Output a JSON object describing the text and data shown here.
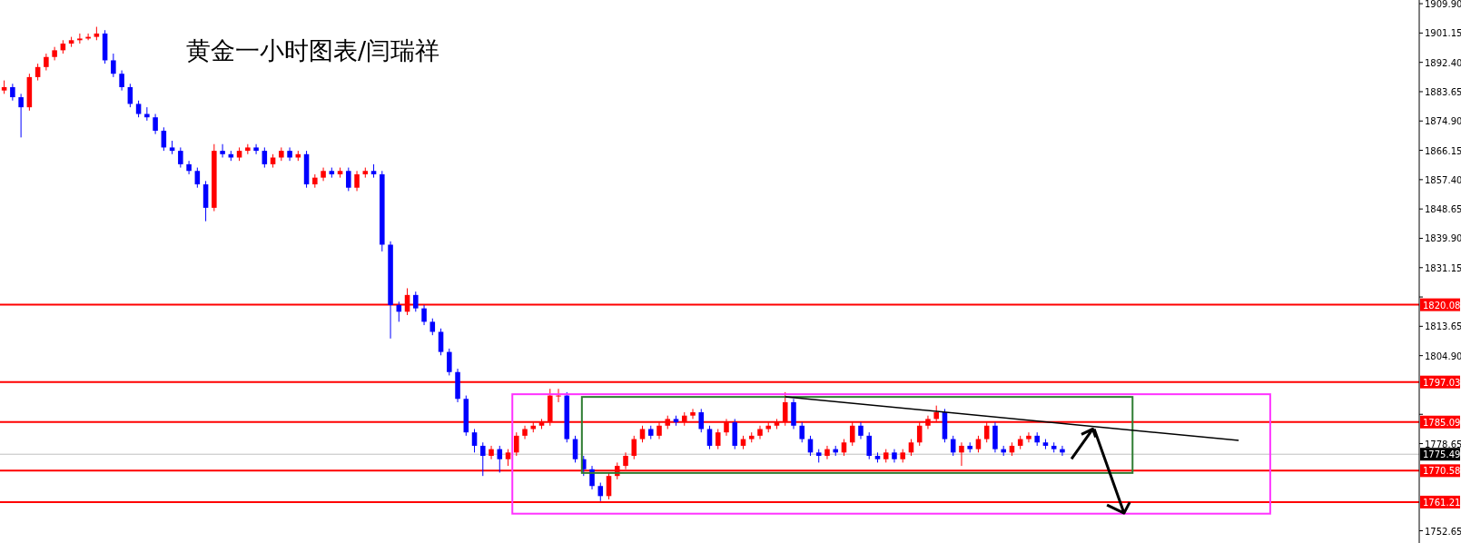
{
  "chart_data": {
    "type": "candlestick",
    "title": "黄金一小时图表/闫瑞祥",
    "categories": [
      null,
      null,
      null,
      null,
      null,
      null,
      null,
      null,
      null,
      null,
      null,
      null,
      null,
      null,
      null,
      null,
      null,
      null,
      null,
      null,
      null,
      null,
      null,
      null,
      null,
      null,
      null,
      null,
      null,
      null,
      null,
      null,
      null,
      null,
      null,
      null,
      null,
      null,
      null,
      null,
      null,
      null,
      null,
      null,
      null,
      null,
      null,
      null,
      null,
      null,
      null,
      null,
      null,
      null,
      null,
      null,
      null,
      null,
      null,
      null,
      null,
      null,
      null,
      null,
      null,
      null,
      null,
      null,
      null,
      null,
      null,
      null,
      null,
      null,
      null,
      null,
      null,
      null,
      null,
      null,
      null,
      null,
      null,
      null,
      null,
      null,
      null,
      null,
      null,
      null,
      null,
      null,
      null,
      null,
      null,
      null,
      null,
      null,
      null,
      null,
      null,
      null,
      null,
      null,
      null,
      null,
      null,
      null,
      null,
      null,
      null,
      null,
      null,
      null,
      null,
      null,
      null,
      null,
      null,
      null,
      null,
      null,
      null,
      null,
      null,
      null,
      null,
      null,
      null,
      null,
      null,
      null,
      null,
      null,
      null,
      null,
      null,
      null,
      null,
      null,
      null,
      null,
      null,
      null,
      null,
      null,
      null,
      null,
      null,
      null,
      null,
      null,
      null,
      null,
      null,
      null,
      null,
      null,
      null,
      null,
      null,
      null,
      null,
      null,
      null,
      null,
      null,
      null,
      null
    ],
    "ohlc": [
      [
        1884,
        1887,
        1883,
        1885
      ],
      [
        1885,
        1886,
        1881,
        1882
      ],
      [
        1882,
        1883,
        1870,
        1879
      ],
      [
        1879,
        1889,
        1878,
        1888
      ],
      [
        1888,
        1892,
        1887,
        1891
      ],
      [
        1891,
        1895,
        1890,
        1894
      ],
      [
        1894,
        1897,
        1893,
        1896
      ],
      [
        1896,
        1899,
        1895,
        1898
      ],
      [
        1898,
        1900,
        1897,
        1899
      ],
      [
        1899,
        1901,
        1898,
        1899.5
      ],
      [
        1899.5,
        1901,
        1899,
        1900
      ],
      [
        1900,
        1903,
        1899,
        1901
      ],
      [
        1901,
        1902,
        1892,
        1893
      ],
      [
        1893,
        1895,
        1888,
        1889
      ],
      [
        1889,
        1890,
        1884,
        1885
      ],
      [
        1885,
        1886,
        1879,
        1880
      ],
      [
        1880,
        1881,
        1876,
        1877
      ],
      [
        1877,
        1879,
        1875,
        1876
      ],
      [
        1876,
        1877,
        1871,
        1872
      ],
      [
        1872,
        1873,
        1866,
        1867
      ],
      [
        1867,
        1869,
        1865,
        1866
      ],
      [
        1866,
        1867,
        1861,
        1862
      ],
      [
        1862,
        1863,
        1859,
        1860
      ],
      [
        1860,
        1861,
        1855,
        1856
      ],
      [
        1856,
        1857,
        1845,
        1849
      ],
      [
        1849,
        1868,
        1848,
        1866
      ],
      [
        1866,
        1868,
        1864,
        1865
      ],
      [
        1865,
        1866,
        1863,
        1864
      ],
      [
        1864,
        1867,
        1863,
        1866
      ],
      [
        1866,
        1868,
        1865,
        1867
      ],
      [
        1867,
        1868,
        1865,
        1866
      ],
      [
        1866,
        1867,
        1861,
        1862
      ],
      [
        1862,
        1865,
        1861,
        1864
      ],
      [
        1864,
        1867,
        1863,
        1866
      ],
      [
        1866,
        1867,
        1863,
        1864
      ],
      [
        1864,
        1866,
        1863,
        1865
      ],
      [
        1865,
        1866,
        1855,
        1856
      ],
      [
        1856,
        1859,
        1855,
        1858
      ],
      [
        1858,
        1861,
        1857,
        1860
      ],
      [
        1860,
        1861,
        1858,
        1859
      ],
      [
        1859,
        1861,
        1858,
        1860
      ],
      [
        1860,
        1861,
        1854,
        1855
      ],
      [
        1855,
        1860,
        1854,
        1859
      ],
      [
        1859,
        1861,
        1858,
        1860
      ],
      [
        1860,
        1862,
        1858,
        1859
      ],
      [
        1859,
        1860,
        1836,
        1838
      ],
      [
        1838,
        1839,
        1810,
        1820
      ],
      [
        1820,
        1821,
        1815,
        1818
      ],
      [
        1818,
        1825,
        1817,
        1823
      ],
      [
        1823,
        1824,
        1818,
        1819
      ],
      [
        1819,
        1820,
        1814,
        1815
      ],
      [
        1815,
        1816,
        1811,
        1812
      ],
      [
        1812,
        1813,
        1805,
        1806
      ],
      [
        1806,
        1807,
        1799,
        1800
      ],
      [
        1800,
        1801,
        1791,
        1792
      ],
      [
        1792,
        1793,
        1781,
        1782
      ],
      [
        1782,
        1783,
        1776,
        1778
      ],
      [
        1778,
        1779,
        1769,
        1775
      ],
      [
        1775,
        1778,
        1774,
        1777
      ],
      [
        1777,
        1778,
        1770,
        1774
      ],
      [
        1774,
        1777,
        1772,
        1776
      ],
      [
        1776,
        1782,
        1775,
        1781
      ],
      [
        1781,
        1784,
        1780,
        1783
      ],
      [
        1783,
        1785,
        1782,
        1784
      ],
      [
        1784,
        1786,
        1783,
        1785
      ],
      [
        1785,
        1795,
        1784,
        1793
      ],
      [
        1793,
        1795,
        1791,
        1793
      ],
      [
        1793,
        1794,
        1779,
        1780
      ],
      [
        1780,
        1781,
        1773,
        1774
      ],
      [
        1774,
        1775,
        1769,
        1771
      ],
      [
        1771,
        1772,
        1765,
        1766
      ],
      [
        1766,
        1767,
        1761.5,
        1763
      ],
      [
        1763,
        1770,
        1762,
        1769
      ],
      [
        1769,
        1773,
        1768,
        1772
      ],
      [
        1772,
        1776,
        1771,
        1775
      ],
      [
        1775,
        1781,
        1774,
        1780
      ],
      [
        1780,
        1784,
        1779,
        1783
      ],
      [
        1783,
        1784,
        1780,
        1781
      ],
      [
        1781,
        1785,
        1780,
        1784
      ],
      [
        1784,
        1787,
        1783,
        1786
      ],
      [
        1786,
        1787,
        1784,
        1785
      ],
      [
        1785,
        1788,
        1784,
        1787
      ],
      [
        1787,
        1789,
        1786,
        1788
      ],
      [
        1788,
        1789,
        1782,
        1783
      ],
      [
        1783,
        1784,
        1777,
        1778
      ],
      [
        1778,
        1783,
        1777,
        1782
      ],
      [
        1782,
        1786,
        1781,
        1785
      ],
      [
        1785,
        1786,
        1777,
        1778
      ],
      [
        1778,
        1781,
        1777,
        1780
      ],
      [
        1780,
        1782,
        1779,
        1781
      ],
      [
        1781,
        1784,
        1780,
        1783
      ],
      [
        1783,
        1785,
        1782,
        1784
      ],
      [
        1784,
        1786,
        1783,
        1785
      ],
      [
        1785,
        1794,
        1784,
        1791
      ],
      [
        1791,
        1792,
        1783,
        1784
      ],
      [
        1784,
        1785,
        1779,
        1780
      ],
      [
        1780,
        1781,
        1775,
        1776
      ],
      [
        1776,
        1777,
        1773,
        1775
      ],
      [
        1775,
        1778,
        1774,
        1777
      ],
      [
        1777,
        1778,
        1775,
        1776
      ],
      [
        1776,
        1780,
        1775,
        1779
      ],
      [
        1779,
        1785,
        1778,
        1784
      ],
      [
        1784,
        1785,
        1780,
        1781
      ],
      [
        1781,
        1782,
        1774,
        1775
      ],
      [
        1775,
        1776,
        1773,
        1774
      ],
      [
        1774,
        1777,
        1773,
        1776
      ],
      [
        1776,
        1777,
        1773,
        1774
      ],
      [
        1774,
        1777,
        1773,
        1776
      ],
      [
        1776,
        1780,
        1775,
        1779
      ],
      [
        1779,
        1785,
        1778,
        1784
      ],
      [
        1784,
        1787,
        1783,
        1786
      ],
      [
        1786,
        1790,
        1785,
        1788
      ],
      [
        1788,
        1789,
        1779,
        1780
      ],
      [
        1780,
        1781,
        1775,
        1776
      ],
      [
        1776,
        1779,
        1772,
        1778
      ],
      [
        1778,
        1779,
        1776,
        1777
      ],
      [
        1777,
        1781,
        1776,
        1780
      ],
      [
        1780,
        1785,
        1779,
        1784
      ],
      [
        1784,
        1785,
        1776,
        1777
      ],
      [
        1777,
        1778,
        1775,
        1776
      ],
      [
        1776,
        1779,
        1775,
        1778
      ],
      [
        1778,
        1781,
        1777,
        1780
      ],
      [
        1780,
        1782,
        1779,
        1781
      ],
      [
        1781,
        1782,
        1778,
        1779
      ],
      [
        1779,
        1780,
        1777,
        1778
      ],
      [
        1778,
        1779,
        1776,
        1777
      ],
      [
        1777,
        1778,
        1775,
        1776
      ],
      null,
      null,
      null,
      null,
      null,
      null,
      null,
      null,
      null,
      null,
      null,
      null,
      null,
      null,
      null,
      null,
      null,
      null,
      null,
      null,
      null,
      null,
      null,
      null,
      null,
      null,
      null,
      null,
      null,
      null,
      null,
      null,
      null,
      null,
      null,
      null,
      null,
      null,
      null,
      null,
      null,
      null
    ],
    "series": [
      {
        "type": "line",
        "color": "#000000",
        "values": [
          null,
          null,
          null,
          null,
          null,
          null,
          null,
          null,
          null,
          null,
          null,
          null,
          null,
          null,
          null,
          null,
          null,
          null,
          null,
          null,
          null,
          null,
          null,
          null,
          null,
          null,
          null,
          null,
          null,
          null,
          null,
          null,
          null,
          null,
          null,
          null,
          null,
          null,
          null,
          null,
          null,
          null,
          null,
          null,
          null,
          null,
          null,
          null,
          null,
          null,
          null,
          null,
          null,
          null,
          null,
          null,
          null,
          null,
          null,
          null,
          null,
          null,
          null,
          null,
          null,
          null,
          null,
          null,
          null,
          null,
          null,
          null,
          null,
          null,
          null,
          null,
          null,
          null,
          null,
          null,
          null,
          null,
          null,
          null,
          null,
          null,
          null,
          null,
          null,
          null,
          null,
          null,
          null,
          1792.6,
          null,
          null,
          null,
          null,
          null,
          null,
          null,
          null,
          null,
          null,
          null,
          null,
          null,
          null,
          null,
          null,
          null,
          null,
          null,
          null,
          null,
          null,
          null,
          null,
          null,
          null,
          null,
          null,
          null,
          null,
          null,
          null,
          null,
          null,
          null,
          null,
          null,
          null,
          null,
          null,
          null,
          null,
          null,
          null,
          null,
          null,
          null,
          null,
          null,
          null,
          null,
          null,
          null,
          1779.6,
          null,
          null,
          null,
          null,
          null,
          null,
          null,
          null,
          null,
          null,
          null,
          null,
          null,
          null,
          null,
          null,
          null,
          null,
          null,
          null,
          null
        ]
      }
    ],
    "ylim": [
      1749,
      1911
    ],
    "yticks": [
      {
        "value": 1909.9,
        "label": "1909.90"
      },
      1901.15,
      {
        "value": 1892.4,
        "label": "1892.40"
      },
      1883.65,
      {
        "value": 1874.9,
        "label": "1874.90"
      },
      1866.15,
      {
        "value": 1857.4,
        "label": "1857.40"
      },
      1848.65,
      {
        "value": 1839.9,
        "label": "1839.90"
      },
      1831.15,
      {
        "value": 1822.4,
        "label": null
      },
      1813.65,
      {
        "value": 1804.9,
        "label": "1804.90"
      },
      {
        "value": 1787.4,
        "label": null
      },
      1778.65,
      1752.65
    ],
    "ref_lines": [
      {
        "axis": "y",
        "value": 1820.08,
        "label": "1820.08",
        "color": "#ff0000"
      },
      {
        "axis": "y",
        "value": 1797.03,
        "label": "1797.03",
        "color": "#ff0000"
      },
      {
        "axis": "y",
        "value": 1785.09,
        "label": "1785.09",
        "color": "#ff0000"
      },
      {
        "axis": "y",
        "value": 1775.49,
        "label": "1775.49",
        "color": "#c0c0c0"
      },
      {
        "axis": "y",
        "value": 1770.58,
        "label": "1770.58",
        "color": "#ff0000"
      },
      {
        "axis": "y",
        "value": 1761.21,
        "label": "1761.21",
        "color": "#ff0000"
      }
    ],
    "grid": false
  }
}
